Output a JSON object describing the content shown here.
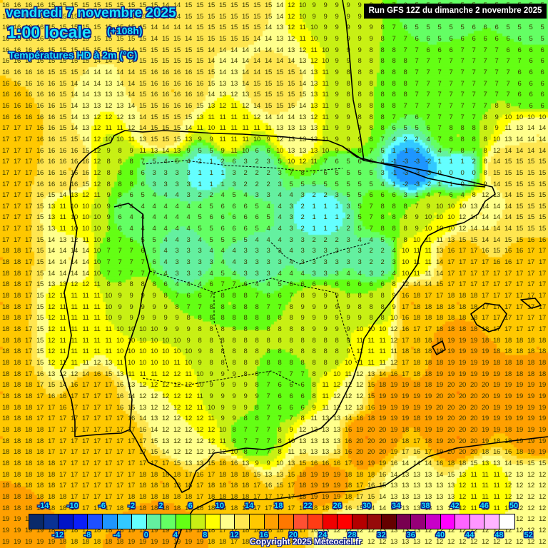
{
  "header": {
    "date": "vendredi 7 novembre 2025",
    "time": "1:00 locale",
    "lead": "(+108h)",
    "variable": "Températures HD à 2m (°C)",
    "run": "Run GFS 12Z du dimanche 2 novembre 2025"
  },
  "footer": {
    "copyright": "Copyright 2025 Meteociel.fr"
  },
  "legend": {
    "unit": "°C",
    "top_labels": [
      "-14",
      "-10",
      "-6",
      "-2",
      "2",
      "6",
      "10",
      "14",
      "18",
      "22",
      "26",
      "30",
      "34",
      "38",
      "42",
      "46",
      "50"
    ],
    "bottom_labels": [
      "-12",
      "-8",
      "-4",
      "0",
      "4",
      "8",
      "12",
      "16",
      "20",
      "24",
      "28",
      "32",
      "36",
      "40",
      "44",
      "48",
      "52"
    ],
    "stops": [
      {
        "min": -16,
        "color": "#0a1440"
      },
      {
        "min": -14,
        "color": "#0a2a6a"
      },
      {
        "min": -12,
        "color": "#0a3296"
      },
      {
        "min": -10,
        "color": "#0014c8"
      },
      {
        "min": -8,
        "color": "#0a1efa"
      },
      {
        "min": -6,
        "color": "#1e50ff"
      },
      {
        "min": -4,
        "color": "#1e96ff"
      },
      {
        "min": -2,
        "color": "#32c8ff"
      },
      {
        "min": 0,
        "color": "#64ffff"
      },
      {
        "min": 2,
        "color": "#64f0a0"
      },
      {
        "min": 4,
        "color": "#64ff64"
      },
      {
        "min": 6,
        "color": "#64ff14"
      },
      {
        "min": 8,
        "color": "#c8f014"
      },
      {
        "min": 10,
        "color": "#ffff00"
      },
      {
        "min": 12,
        "color": "#ffff8c"
      },
      {
        "min": 14,
        "color": "#ffe650"
      },
      {
        "min": 16,
        "color": "#ffc800"
      },
      {
        "min": 18,
        "color": "#ffa000"
      },
      {
        "min": 20,
        "color": "#ff7800"
      },
      {
        "min": 22,
        "color": "#ff5032"
      },
      {
        "min": 24,
        "color": "#ff3c14"
      },
      {
        "min": 26,
        "color": "#f00000"
      },
      {
        "min": 28,
        "color": "#ff0000"
      },
      {
        "min": 30,
        "color": "#b40000"
      },
      {
        "min": 32,
        "color": "#960a0a"
      },
      {
        "min": 34,
        "color": "#640000"
      },
      {
        "min": 36,
        "color": "#780050"
      },
      {
        "min": 38,
        "color": "#960078"
      },
      {
        "min": 40,
        "color": "#c800c8"
      },
      {
        "min": 42,
        "color": "#ff00ff"
      },
      {
        "min": 44,
        "color": "#ff64ff"
      },
      {
        "min": 46,
        "color": "#ff96ff"
      },
      {
        "min": 48,
        "color": "#ffb4ff"
      },
      {
        "min": 50,
        "color": "#ffffff"
      }
    ]
  },
  "map": {
    "region": "Iberian Peninsula",
    "grid_cols": 48,
    "grid_rows": 49,
    "anchors": [
      {
        "c": 0,
        "r": 0,
        "v": 16
      },
      {
        "c": 8,
        "r": 0,
        "v": 15
      },
      {
        "c": 20,
        "r": 0,
        "v": 15
      },
      {
        "c": 30,
        "r": 0,
        "v": 9
      },
      {
        "c": 38,
        "r": 0,
        "v": 5
      },
      {
        "c": 47,
        "r": 0,
        "v": 5
      },
      {
        "c": 0,
        "r": 8,
        "v": 16
      },
      {
        "c": 15,
        "r": 8,
        "v": 16
      },
      {
        "c": 24,
        "r": 8,
        "v": 15
      },
      {
        "c": 32,
        "r": 8,
        "v": 8
      },
      {
        "c": 40,
        "r": 8,
        "v": 7
      },
      {
        "c": 47,
        "r": 8,
        "v": 6
      },
      {
        "c": 0,
        "r": 12,
        "v": 17
      },
      {
        "c": 14,
        "r": 12,
        "v": 15
      },
      {
        "c": 20,
        "r": 12,
        "v": 11
      },
      {
        "c": 26,
        "r": 12,
        "v": 13
      },
      {
        "c": 30,
        "r": 12,
        "v": 9
      },
      {
        "c": 40,
        "r": 12,
        "v": 8
      },
      {
        "c": 47,
        "r": 12,
        "v": 14
      },
      {
        "c": 0,
        "r": 15,
        "v": 17
      },
      {
        "c": 6,
        "r": 15,
        "v": 16
      },
      {
        "c": 10,
        "r": 15,
        "v": 8
      },
      {
        "c": 14,
        "r": 15,
        "v": 3
      },
      {
        "c": 18,
        "r": 15,
        "v": 1
      },
      {
        "c": 22,
        "r": 15,
        "v": 2
      },
      {
        "c": 30,
        "r": 15,
        "v": 5
      },
      {
        "c": 36,
        "r": 15,
        "v": -3
      },
      {
        "c": 40,
        "r": 15,
        "v": 0
      },
      {
        "c": 44,
        "r": 15,
        "v": 15
      },
      {
        "c": 47,
        "r": 15,
        "v": 15
      },
      {
        "c": 0,
        "r": 19,
        "v": 17
      },
      {
        "c": 7,
        "r": 19,
        "v": 10
      },
      {
        "c": 12,
        "r": 19,
        "v": 4
      },
      {
        "c": 20,
        "r": 19,
        "v": 6
      },
      {
        "c": 28,
        "r": 19,
        "v": 1
      },
      {
        "c": 34,
        "r": 19,
        "v": 8
      },
      {
        "c": 38,
        "r": 19,
        "v": 10
      },
      {
        "c": 42,
        "r": 19,
        "v": 14
      },
      {
        "c": 47,
        "r": 19,
        "v": 15
      },
      {
        "c": 0,
        "r": 23,
        "v": 18
      },
      {
        "c": 6,
        "r": 23,
        "v": 14
      },
      {
        "c": 10,
        "r": 23,
        "v": 7
      },
      {
        "c": 16,
        "r": 23,
        "v": 3
      },
      {
        "c": 22,
        "r": 23,
        "v": 3
      },
      {
        "c": 28,
        "r": 23,
        "v": 3
      },
      {
        "c": 33,
        "r": 23,
        "v": 2
      },
      {
        "c": 36,
        "r": 23,
        "v": 11
      },
      {
        "c": 40,
        "r": 23,
        "v": 17
      },
      {
        "c": 47,
        "r": 23,
        "v": 17
      },
      {
        "c": 0,
        "r": 27,
        "v": 18
      },
      {
        "c": 6,
        "r": 27,
        "v": 11
      },
      {
        "c": 12,
        "r": 27,
        "v": 9
      },
      {
        "c": 20,
        "r": 27,
        "v": 8
      },
      {
        "c": 28,
        "r": 27,
        "v": 9
      },
      {
        "c": 33,
        "r": 27,
        "v": 8
      },
      {
        "c": 36,
        "r": 27,
        "v": 18
      },
      {
        "c": 40,
        "r": 27,
        "v": 18
      },
      {
        "c": 44,
        "r": 27,
        "v": 17
      },
      {
        "c": 47,
        "r": 27,
        "v": 17
      },
      {
        "c": 0,
        "r": 31,
        "v": 18
      },
      {
        "c": 6,
        "r": 31,
        "v": 11
      },
      {
        "c": 12,
        "r": 31,
        "v": 10
      },
      {
        "c": 20,
        "r": 31,
        "v": 8
      },
      {
        "c": 28,
        "r": 31,
        "v": 8
      },
      {
        "c": 33,
        "r": 31,
        "v": 11
      },
      {
        "c": 36,
        "r": 31,
        "v": 18
      },
      {
        "c": 40,
        "r": 31,
        "v": 19
      },
      {
        "c": 47,
        "r": 31,
        "v": 18
      },
      {
        "c": 0,
        "r": 35,
        "v": 18
      },
      {
        "c": 8,
        "r": 35,
        "v": 17
      },
      {
        "c": 14,
        "r": 35,
        "v": 12
      },
      {
        "c": 20,
        "r": 35,
        "v": 9
      },
      {
        "c": 25,
        "r": 35,
        "v": 6
      },
      {
        "c": 30,
        "r": 35,
        "v": 12
      },
      {
        "c": 34,
        "r": 35,
        "v": 19
      },
      {
        "c": 40,
        "r": 35,
        "v": 20
      },
      {
        "c": 47,
        "r": 35,
        "v": 19
      },
      {
        "c": 0,
        "r": 39,
        "v": 18
      },
      {
        "c": 10,
        "r": 39,
        "v": 17
      },
      {
        "c": 16,
        "r": 39,
        "v": 12
      },
      {
        "c": 22,
        "r": 39,
        "v": 7
      },
      {
        "c": 28,
        "r": 39,
        "v": 13
      },
      {
        "c": 32,
        "r": 39,
        "v": 20
      },
      {
        "c": 40,
        "r": 39,
        "v": 20
      },
      {
        "c": 47,
        "r": 39,
        "v": 19
      },
      {
        "c": 0,
        "r": 43,
        "v": 18
      },
      {
        "c": 14,
        "r": 43,
        "v": 18
      },
      {
        "c": 20,
        "r": 43,
        "v": 18
      },
      {
        "c": 28,
        "r": 43,
        "v": 19
      },
      {
        "c": 36,
        "r": 43,
        "v": 13
      },
      {
        "c": 42,
        "r": 43,
        "v": 11
      },
      {
        "c": 47,
        "r": 43,
        "v": 12
      },
      {
        "c": 0,
        "r": 48,
        "v": 19
      },
      {
        "c": 14,
        "r": 48,
        "v": 19
      },
      {
        "c": 24,
        "r": 48,
        "v": 18
      },
      {
        "c": 30,
        "r": 48,
        "v": 12
      },
      {
        "c": 40,
        "r": 48,
        "v": 12
      },
      {
        "c": 47,
        "r": 48,
        "v": 12
      }
    ]
  }
}
